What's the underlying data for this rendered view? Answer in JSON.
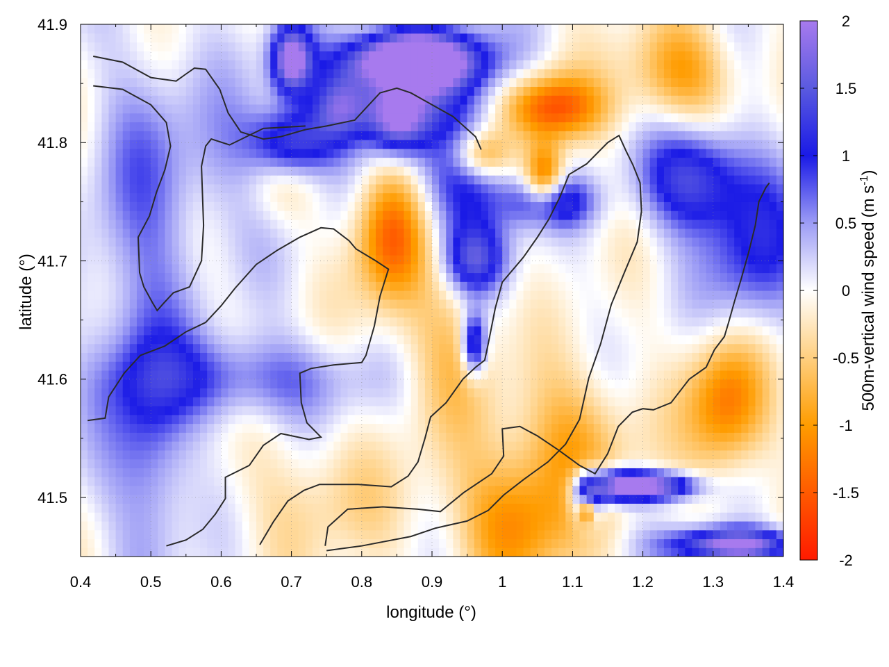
{
  "chart_data": {
    "type": "heatmap",
    "title": "",
    "xlabel": "longitude (°)",
    "ylabel": "latitude (°)",
    "colorbar_label": "500m-vertical wind speed",
    "colorbar_unit_base": "(m s",
    "colorbar_unit_exp": "-1",
    "colorbar_unit_close": ")",
    "xlim": [
      0.4,
      1.4
    ],
    "ylim": [
      41.45,
      41.9
    ],
    "clim": [
      -2,
      2
    ],
    "x_ticks": [
      0.4,
      0.5,
      0.6,
      0.7,
      0.8,
      0.9,
      1.0,
      1.1,
      1.2,
      1.3,
      1.4
    ],
    "x_tick_labels": [
      "0.4",
      "0.5",
      "0.6",
      "0.7",
      "0.8",
      "0.9",
      "1",
      "1.1",
      "1.2",
      "1.3",
      "1.4"
    ],
    "y_ticks": [
      41.5,
      41.6,
      41.7,
      41.8,
      41.9
    ],
    "y_tick_labels": [
      "41.5",
      "41.6",
      "41.7",
      "41.8",
      "41.9"
    ],
    "colorbar_ticks": [
      -2,
      -1.5,
      -1,
      -0.5,
      0,
      0.5,
      1,
      1.5,
      2
    ],
    "colorbar_tick_labels": [
      "-2",
      "-1.5",
      "-1",
      "-0.5",
      "0",
      "0.5",
      "1",
      "1.5",
      "2"
    ],
    "grid": true,
    "colormap": [
      {
        "v": -2.0,
        "color": "#ff1a00"
      },
      {
        "v": -1.5,
        "color": "#ff5a00"
      },
      {
        "v": -1.0,
        "color": "#ff9c00"
      },
      {
        "v": -0.5,
        "color": "#ffcf80"
      },
      {
        "v": 0.0,
        "color": "#ffffff"
      },
      {
        "v": 0.5,
        "color": "#9c9cf5"
      },
      {
        "v": 1.0,
        "color": "#1a1ae6"
      },
      {
        "v": 1.5,
        "color": "#5a5ae0"
      },
      {
        "v": 2.0,
        "color": "#a77aee"
      }
    ],
    "features": [
      {
        "lon": 0.96,
        "lat": 41.63,
        "amp": 1.6,
        "sx": 0.012,
        "sy": 0.018
      },
      {
        "lon": 0.7,
        "lat": 41.87,
        "amp": 2.2,
        "sx": 0.02,
        "sy": 0.02
      },
      {
        "lon": 0.87,
        "lat": 41.87,
        "amp": 2.4,
        "sx": 0.06,
        "sy": 0.015
      },
      {
        "lon": 0.85,
        "lat": 41.82,
        "amp": 1.8,
        "sx": 0.03,
        "sy": 0.02
      },
      {
        "lon": 0.7,
        "lat": 41.8,
        "amp": 1.5,
        "sx": 0.04,
        "sy": 0.02
      },
      {
        "lon": 0.77,
        "lat": 41.83,
        "amp": 1.3,
        "sx": 0.03,
        "sy": 0.02
      },
      {
        "lon": 0.95,
        "lat": 41.77,
        "amp": 1.1,
        "sx": 0.05,
        "sy": 0.04
      },
      {
        "lon": 1.07,
        "lat": 41.75,
        "amp": 1.3,
        "sx": 0.04,
        "sy": 0.015
      },
      {
        "lon": 1.27,
        "lat": 41.77,
        "amp": 1.4,
        "sx": 0.05,
        "sy": 0.03
      },
      {
        "lon": 1.36,
        "lat": 41.71,
        "amp": 1.0,
        "sx": 0.05,
        "sy": 0.05
      },
      {
        "lon": 0.96,
        "lat": 41.7,
        "amp": 1.2,
        "sx": 0.03,
        "sy": 0.02
      },
      {
        "lon": 0.88,
        "lat": 41.86,
        "amp": 1.2,
        "sx": 0.08,
        "sy": 0.03
      },
      {
        "lon": 0.63,
        "lat": 41.6,
        "amp": 0.8,
        "sx": 0.12,
        "sy": 0.025
      },
      {
        "lon": 0.5,
        "lat": 41.55,
        "amp": 0.7,
        "sx": 0.04,
        "sy": 0.08
      },
      {
        "lon": 0.48,
        "lat": 41.72,
        "amp": 0.5,
        "sx": 0.05,
        "sy": 0.12
      },
      {
        "lon": 0.62,
        "lat": 41.78,
        "amp": 0.5,
        "sx": 0.08,
        "sy": 0.05
      },
      {
        "lon": 1.16,
        "lat": 41.51,
        "amp": 1.8,
        "sx": 0.03,
        "sy": 0.01
      },
      {
        "lon": 1.22,
        "lat": 41.51,
        "amp": 2.0,
        "sx": 0.04,
        "sy": 0.008
      },
      {
        "lon": 1.12,
        "lat": 41.5,
        "amp": 1.8,
        "sx": 0.015,
        "sy": 0.015
      },
      {
        "lon": 1.33,
        "lat": 41.46,
        "amp": 2.2,
        "sx": 0.06,
        "sy": 0.01
      },
      {
        "lon": 0.84,
        "lat": 41.72,
        "amp": -1.4,
        "sx": 0.035,
        "sy": 0.04
      },
      {
        "lon": 0.68,
        "lat": 41.77,
        "amp": -0.6,
        "sx": 0.04,
        "sy": 0.03
      },
      {
        "lon": 1.06,
        "lat": 41.77,
        "amp": -1.6,
        "sx": 0.02,
        "sy": 0.02
      },
      {
        "lon": 0.97,
        "lat": 41.79,
        "amp": -1.2,
        "sx": 0.03,
        "sy": 0.015
      },
      {
        "lon": 1.07,
        "lat": 41.83,
        "amp": -1.6,
        "sx": 0.05,
        "sy": 0.02
      },
      {
        "lon": 1.25,
        "lat": 41.86,
        "amp": -1.0,
        "sx": 0.05,
        "sy": 0.03
      },
      {
        "lon": 1.32,
        "lat": 41.58,
        "amp": -1.3,
        "sx": 0.04,
        "sy": 0.04
      },
      {
        "lon": 1.02,
        "lat": 41.48,
        "amp": -1.1,
        "sx": 0.06,
        "sy": 0.04
      },
      {
        "lon": 1.1,
        "lat": 41.55,
        "amp": -0.8,
        "sx": 0.06,
        "sy": 0.04
      },
      {
        "lon": 0.92,
        "lat": 41.62,
        "amp": -0.6,
        "sx": 0.05,
        "sy": 0.05
      },
      {
        "lon": 1.12,
        "lat": 41.49,
        "amp": -1.6,
        "sx": 0.008,
        "sy": 0.008
      },
      {
        "lon": 0.74,
        "lat": 41.5,
        "amp": -0.4,
        "sx": 0.08,
        "sy": 0.04
      }
    ],
    "contours": [
      [
        [
          0.418,
          41.873
        ],
        [
          0.46,
          41.868
        ],
        [
          0.5,
          41.855
        ],
        [
          0.536,
          41.852
        ],
        [
          0.55,
          41.858
        ],
        [
          0.562,
          41.863
        ],
        [
          0.578,
          41.862
        ],
        [
          0.598,
          41.845
        ],
        [
          0.61,
          41.825
        ],
        [
          0.628,
          41.809
        ],
        [
          0.66,
          41.803
        ],
        [
          0.685,
          41.805
        ],
        [
          0.72,
          41.811
        ],
        [
          0.75,
          41.814
        ],
        [
          0.79,
          41.819
        ],
        [
          0.826,
          41.842
        ],
        [
          0.85,
          41.846
        ],
        [
          0.87,
          41.842
        ],
        [
          0.9,
          41.832
        ],
        [
          0.93,
          41.822
        ],
        [
          0.962,
          41.805
        ],
        [
          0.97,
          41.794
        ]
      ],
      [
        [
          0.418,
          41.848
        ],
        [
          0.46,
          41.845
        ],
        [
          0.5,
          41.832
        ],
        [
          0.522,
          41.817
        ],
        [
          0.528,
          41.797
        ],
        [
          0.52,
          41.777
        ],
        [
          0.508,
          41.758
        ],
        [
          0.498,
          41.738
        ],
        [
          0.482,
          41.72
        ],
        [
          0.484,
          41.69
        ],
        [
          0.49,
          41.678
        ],
        [
          0.502,
          41.665
        ],
        [
          0.509,
          41.658
        ],
        [
          0.518,
          41.664
        ],
        [
          0.532,
          41.673
        ],
        [
          0.555,
          41.678
        ],
        [
          0.572,
          41.7
        ],
        [
          0.575,
          41.73
        ],
        [
          0.572,
          41.78
        ],
        [
          0.578,
          41.797
        ],
        [
          0.586,
          41.803
        ],
        [
          0.612,
          41.798
        ],
        [
          0.66,
          41.812
        ],
        [
          0.72,
          41.814
        ]
      ],
      [
        [
          0.41,
          41.565
        ],
        [
          0.435,
          41.567
        ],
        [
          0.44,
          41.585
        ],
        [
          0.462,
          41.605
        ],
        [
          0.485,
          41.62
        ],
        [
          0.52,
          41.628
        ],
        [
          0.55,
          41.64
        ],
        [
          0.578,
          41.648
        ],
        [
          0.6,
          41.662
        ],
        [
          0.62,
          41.677
        ],
        [
          0.65,
          41.697
        ],
        [
          0.68,
          41.709
        ],
        [
          0.712,
          41.72
        ],
        [
          0.742,
          41.728
        ],
        [
          0.76,
          41.727
        ],
        [
          0.782,
          41.717
        ],
        [
          0.792,
          41.71
        ],
        [
          0.82,
          41.7
        ],
        [
          0.838,
          41.693
        ],
        [
          0.826,
          41.67
        ],
        [
          0.818,
          41.645
        ],
        [
          0.806,
          41.62
        ],
        [
          0.8,
          41.614
        ],
        [
          0.76,
          41.612
        ],
        [
          0.728,
          41.609
        ],
        [
          0.712,
          41.605
        ],
        [
          0.714,
          41.58
        ],
        [
          0.722,
          41.563
        ],
        [
          0.742,
          41.551
        ],
        [
          0.725,
          41.549
        ],
        [
          0.685,
          41.554
        ],
        [
          0.66,
          41.544
        ],
        [
          0.64,
          41.527
        ],
        [
          0.606,
          41.517
        ],
        [
          0.606,
          41.499
        ],
        [
          0.592,
          41.486
        ],
        [
          0.574,
          41.473
        ],
        [
          0.55,
          41.464
        ],
        [
          0.522,
          41.459
        ]
      ],
      [
        [
          0.655,
          41.46
        ],
        [
          0.674,
          41.479
        ],
        [
          0.695,
          41.497
        ],
        [
          0.718,
          41.506
        ],
        [
          0.74,
          41.511
        ],
        [
          0.795,
          41.511
        ],
        [
          0.842,
          41.509
        ],
        [
          0.866,
          41.518
        ],
        [
          0.88,
          41.53
        ],
        [
          0.89,
          41.55
        ],
        [
          0.898,
          41.568
        ],
        [
          0.92,
          41.58
        ],
        [
          0.944,
          41.6
        ],
        [
          0.962,
          41.61
        ],
        [
          0.975,
          41.616
        ],
        [
          0.98,
          41.63
        ],
        [
          0.99,
          41.66
        ],
        [
          1.0,
          41.682
        ],
        [
          1.03,
          41.703
        ],
        [
          1.05,
          41.72
        ],
        [
          1.066,
          41.735
        ],
        [
          1.082,
          41.754
        ],
        [
          1.095,
          41.773
        ],
        [
          1.12,
          41.782
        ],
        [
          1.15,
          41.8
        ],
        [
          1.166,
          41.806
        ],
        [
          1.176,
          41.793
        ],
        [
          1.186,
          41.781
        ],
        [
          1.196,
          41.766
        ],
        [
          1.198,
          41.742
        ],
        [
          1.192,
          41.716
        ],
        [
          1.175,
          41.692
        ],
        [
          1.155,
          41.663
        ],
        [
          1.14,
          41.63
        ],
        [
          1.123,
          41.601
        ],
        [
          1.11,
          41.566
        ],
        [
          1.09,
          41.545
        ],
        [
          1.065,
          41.53
        ],
        [
          1.03,
          41.515
        ],
        [
          1.002,
          41.502
        ],
        [
          0.98,
          41.489
        ],
        [
          0.95,
          41.48
        ],
        [
          0.905,
          41.474
        ],
        [
          0.87,
          41.467
        ],
        [
          0.8,
          41.459
        ],
        [
          0.75,
          41.455
        ]
      ],
      [
        [
          0.748,
          41.459
        ],
        [
          0.752,
          41.475
        ],
        [
          0.78,
          41.49
        ],
        [
          0.83,
          41.492
        ],
        [
          0.88,
          41.49
        ],
        [
          0.912,
          41.488
        ],
        [
          0.945,
          41.504
        ],
        [
          0.985,
          41.52
        ],
        [
          1.002,
          41.535
        ],
        [
          1.0,
          41.558
        ],
        [
          1.025,
          41.56
        ],
        [
          1.05,
          41.552
        ],
        [
          1.08,
          41.54
        ],
        [
          1.11,
          41.527
        ],
        [
          1.132,
          41.52
        ],
        [
          1.15,
          41.537
        ],
        [
          1.165,
          41.56
        ],
        [
          1.185,
          41.572
        ],
        [
          1.2,
          41.575
        ],
        [
          1.215,
          41.574
        ],
        [
          1.24,
          41.58
        ],
        [
          1.266,
          41.6
        ],
        [
          1.29,
          41.61
        ],
        [
          1.302,
          41.625
        ],
        [
          1.316,
          41.636
        ],
        [
          1.322,
          41.648
        ],
        [
          1.33,
          41.665
        ],
        [
          1.34,
          41.685
        ],
        [
          1.35,
          41.706
        ],
        [
          1.36,
          41.73
        ],
        [
          1.365,
          41.75
        ],
        [
          1.375,
          41.762
        ],
        [
          1.38,
          41.766
        ]
      ]
    ]
  }
}
